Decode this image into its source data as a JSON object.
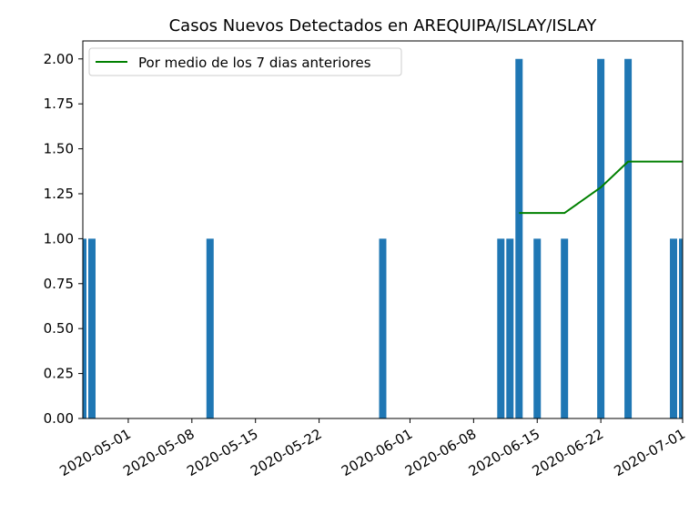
{
  "chart_data": {
    "type": "bar",
    "title": "Casos Nuevos Detectados en AREQUIPA/ISLAY/ISLAY",
    "xlabel": "",
    "ylabel": "",
    "ylim": [
      0,
      2.1
    ],
    "xlim": [
      "2020-04-26",
      "2020-07-01"
    ],
    "grid": false,
    "legend_position": "upper-left",
    "x_tick_labels": [
      "2020-05-01",
      "2020-05-08",
      "2020-05-15",
      "2020-05-22",
      "2020-06-01",
      "2020-06-08",
      "2020-06-15",
      "2020-06-22",
      "2020-07-01"
    ],
    "y_tick_labels": [
      "0.00",
      "0.25",
      "0.50",
      "0.75",
      "1.00",
      "1.25",
      "1.50",
      "1.75",
      "2.00"
    ],
    "y_ticks": [
      0,
      0.25,
      0.5,
      0.75,
      1.0,
      1.25,
      1.5,
      1.75,
      2.0
    ],
    "series": [
      {
        "type": "bar",
        "color": "#1f77b4",
        "points": [
          {
            "x": "2020-04-26",
            "y": 1
          },
          {
            "x": "2020-04-27",
            "y": 1
          },
          {
            "x": "2020-05-10",
            "y": 1
          },
          {
            "x": "2020-05-29",
            "y": 1
          },
          {
            "x": "2020-06-11",
            "y": 1
          },
          {
            "x": "2020-06-12",
            "y": 1
          },
          {
            "x": "2020-06-13",
            "y": 2
          },
          {
            "x": "2020-06-15",
            "y": 1
          },
          {
            "x": "2020-06-18",
            "y": 1
          },
          {
            "x": "2020-06-22",
            "y": 2
          },
          {
            "x": "2020-06-25",
            "y": 2
          },
          {
            "x": "2020-06-30",
            "y": 1
          },
          {
            "x": "2020-07-01",
            "y": 1
          }
        ]
      },
      {
        "type": "line",
        "name": "Por medio de los 7 dias anteriores",
        "color": "#008000",
        "points": [
          {
            "x": "2020-06-13",
            "y": 1.1429
          },
          {
            "x": "2020-06-18",
            "y": 1.1429
          },
          {
            "x": "2020-06-22",
            "y": 1.2857
          },
          {
            "x": "2020-06-25",
            "y": 1.4286
          },
          {
            "x": "2020-07-01",
            "y": 1.4286
          }
        ]
      }
    ]
  }
}
